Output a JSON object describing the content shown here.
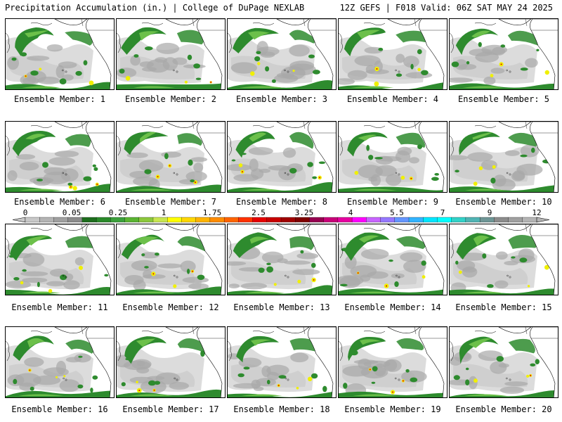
{
  "header": {
    "title": "Precipitation Accumulation (in.) | College of DuPage NEXLAB",
    "run_info": "12Z GEFS | F018 Valid: 06Z SAT MAY 24 2025"
  },
  "members": [
    {
      "label": "Ensemble Member: 1"
    },
    {
      "label": "Ensemble Member: 2"
    },
    {
      "label": "Ensemble Member: 3"
    },
    {
      "label": "Ensemble Member: 4"
    },
    {
      "label": "Ensemble Member: 5"
    },
    {
      "label": "Ensemble Member: 6"
    },
    {
      "label": "Ensemble Member: 7"
    },
    {
      "label": "Ensemble Member: 8"
    },
    {
      "label": "Ensemble Member: 9"
    },
    {
      "label": "Ensemble Member: 10"
    },
    {
      "label": "Ensemble Member: 11"
    },
    {
      "label": "Ensemble Member: 12"
    },
    {
      "label": "Ensemble Member: 13"
    },
    {
      "label": "Ensemble Member: 14"
    },
    {
      "label": "Ensemble Member: 15"
    },
    {
      "label": "Ensemble Member: 16"
    },
    {
      "label": "Ensemble Member: 17"
    },
    {
      "label": "Ensemble Member: 18"
    },
    {
      "label": "Ensemble Member: 19"
    },
    {
      "label": "Ensemble Member: 20"
    }
  ],
  "colorbar": {
    "tick_labels": [
      "0",
      "0.05",
      "0.25",
      "1",
      "1.75",
      "2.5",
      "3.25",
      "4",
      "5.5",
      "7",
      "9",
      "12"
    ],
    "colors": [
      "#c8c8c8",
      "#b4b4b4",
      "#a0a0a0",
      "#8c8c8c",
      "#1e6e1e",
      "#2a8a2a",
      "#3ca03c",
      "#5ab432",
      "#8cc83c",
      "#c8e650",
      "#ffff00",
      "#ffd700",
      "#ffb400",
      "#ff8c00",
      "#ff6400",
      "#ff3200",
      "#e60000",
      "#c80000",
      "#a00000",
      "#800000",
      "#960050",
      "#c80078",
      "#e600a0",
      "#ff00ff",
      "#c864ff",
      "#9678ff",
      "#6496ff",
      "#32b4ff",
      "#00e6ff",
      "#00ffff",
      "#32d2c8",
      "#50b4b4",
      "#6e9696",
      "#8c8c8c",
      "#a0a0a0",
      "#b4b4b4"
    ]
  },
  "map_colors": {
    "ocean_light": "#dcdcdc",
    "gray_mid": "#a8a8a8",
    "green_dark": "#2e8b2e",
    "green_light": "#6cc04a",
    "yellow": "#f0f000",
    "red": "#e00000",
    "land": "#ffffff"
  }
}
